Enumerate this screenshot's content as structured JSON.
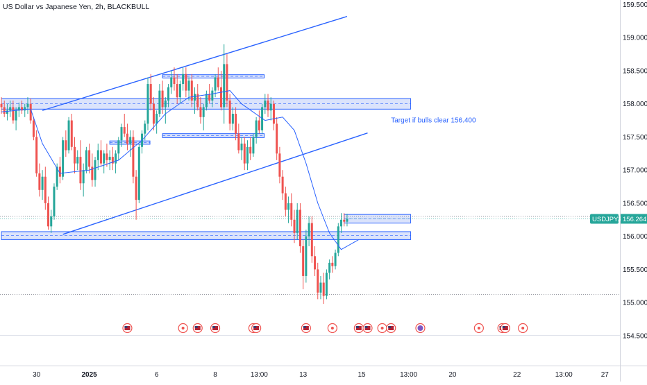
{
  "header": {
    "title": "US Dollar vs Japanese Yen, 2h, BLACKBULL"
  },
  "colors": {
    "up": "#26a69a",
    "down": "#ef5350",
    "drawing": "#2962ff",
    "zone_fill": "#dbe3fb",
    "sma": "#2962ff",
    "price_badge": "#26a69a",
    "event_ring": "#ef5350",
    "grid": "#e0e3eb"
  },
  "chart_data": {
    "type": "candlestick",
    "title": "US Dollar vs Japanese Yen, 2h, BLACKBULL",
    "symbol": "USDJPY.P",
    "current_price": 156.264,
    "ylim": [
      154.4,
      159.7
    ],
    "y_ticks": [
      "159.500",
      "159.000",
      "158.500",
      "158.000",
      "157.500",
      "157.000",
      "156.500",
      "156.000",
      "155.500",
      "155.000",
      "154.500"
    ],
    "x_ticks": [
      {
        "label": "30",
        "bar": 12,
        "bold": false
      },
      {
        "label": "2025",
        "bar": 30,
        "bold": true
      },
      {
        "label": "6",
        "bar": 53,
        "bold": false
      },
      {
        "label": "8",
        "bar": 73,
        "bold": false
      },
      {
        "label": "13:00",
        "bar": 88,
        "bold": false
      },
      {
        "label": "13",
        "bar": 103,
        "bold": false
      },
      {
        "label": "15",
        "bar": 123,
        "bold": false
      },
      {
        "label": "13:00",
        "bar": 139,
        "bold": false
      },
      {
        "label": "20",
        "bar": 154,
        "bold": false
      },
      {
        "label": "22",
        "bar": 176,
        "bold": false
      },
      {
        "label": "13:00",
        "bar": 192,
        "bold": false
      },
      {
        "label": "27",
        "bar": 206,
        "bold": false
      }
    ],
    "ohlc": [
      [
        158.0,
        158.1,
        157.85,
        157.95
      ],
      [
        157.95,
        158.05,
        157.8,
        157.85
      ],
      [
        157.85,
        158.0,
        157.75,
        157.9
      ],
      [
        157.9,
        158.05,
        157.8,
        157.95
      ],
      [
        157.95,
        158.05,
        157.7,
        157.75
      ],
      [
        157.75,
        157.95,
        157.6,
        157.9
      ],
      [
        157.9,
        158.02,
        157.8,
        157.95
      ],
      [
        157.95,
        158.05,
        157.85,
        157.9
      ],
      [
        157.9,
        158.0,
        157.8,
        157.95
      ],
      [
        157.95,
        158.1,
        157.85,
        158.0
      ],
      [
        158.0,
        158.08,
        157.7,
        157.75
      ],
      [
        157.75,
        157.8,
        157.45,
        157.5
      ],
      [
        157.5,
        157.6,
        156.9,
        156.95
      ],
      [
        156.95,
        157.1,
        156.6,
        156.7
      ],
      [
        156.7,
        157.0,
        156.55,
        156.9
      ],
      [
        156.9,
        157.05,
        156.4,
        156.5
      ],
      [
        156.5,
        156.6,
        156.1,
        156.15
      ],
      [
        156.15,
        156.4,
        156.05,
        156.3
      ],
      [
        156.3,
        156.8,
        156.25,
        156.75
      ],
      [
        156.75,
        157.1,
        156.7,
        157.05
      ],
      [
        157.05,
        157.2,
        156.8,
        156.9
      ],
      [
        156.9,
        157.5,
        156.85,
        157.45
      ],
      [
        157.45,
        157.6,
        157.2,
        157.3
      ],
      [
        157.3,
        157.8,
        157.25,
        157.75
      ],
      [
        157.75,
        157.85,
        157.3,
        157.35
      ],
      [
        157.35,
        157.5,
        156.95,
        157.1
      ],
      [
        157.1,
        157.3,
        157.0,
        157.2
      ],
      [
        157.2,
        157.45,
        156.7,
        156.8
      ],
      [
        156.8,
        157.1,
        156.6,
        157.0
      ],
      [
        157.0,
        157.35,
        156.95,
        157.3
      ],
      [
        157.3,
        157.4,
        156.95,
        157.05
      ],
      [
        157.05,
        157.25,
        156.75,
        156.85
      ],
      [
        156.85,
        157.2,
        156.75,
        157.15
      ],
      [
        157.15,
        157.4,
        157.0,
        157.3
      ],
      [
        157.3,
        157.45,
        157.05,
        157.1
      ],
      [
        157.1,
        157.3,
        156.95,
        157.25
      ],
      [
        157.25,
        157.4,
        157.05,
        157.15
      ],
      [
        157.15,
        157.3,
        157.0,
        157.2
      ],
      [
        157.2,
        157.35,
        157.0,
        157.1
      ],
      [
        157.1,
        157.3,
        156.95,
        157.25
      ],
      [
        157.25,
        157.5,
        157.15,
        157.45
      ],
      [
        157.45,
        157.7,
        157.35,
        157.65
      ],
      [
        157.65,
        157.85,
        157.5,
        157.55
      ],
      [
        157.55,
        157.7,
        157.3,
        157.4
      ],
      [
        157.4,
        157.6,
        157.2,
        157.5
      ],
      [
        157.5,
        157.6,
        156.8,
        156.9
      ],
      [
        156.9,
        157.0,
        156.25,
        156.55
      ],
      [
        156.55,
        157.4,
        156.5,
        157.35
      ],
      [
        157.35,
        157.6,
        157.25,
        157.55
      ],
      [
        157.55,
        157.75,
        157.45,
        157.7
      ],
      [
        157.7,
        158.4,
        157.6,
        158.3
      ],
      [
        158.3,
        158.45,
        157.9,
        158.0
      ],
      [
        158.0,
        158.1,
        157.6,
        157.7
      ],
      [
        157.7,
        157.9,
        157.55,
        157.85
      ],
      [
        157.85,
        158.3,
        157.8,
        158.2
      ],
      [
        158.2,
        158.35,
        157.85,
        157.95
      ],
      [
        157.95,
        158.1,
        157.7,
        158.05
      ],
      [
        158.05,
        158.3,
        157.95,
        158.25
      ],
      [
        158.25,
        158.5,
        158.15,
        158.4
      ],
      [
        158.4,
        158.55,
        158.2,
        158.3
      ],
      [
        158.3,
        158.45,
        158.0,
        158.1
      ],
      [
        158.1,
        158.35,
        158.0,
        158.3
      ],
      [
        158.3,
        158.55,
        158.2,
        158.45
      ],
      [
        158.45,
        158.55,
        158.1,
        158.2
      ],
      [
        158.2,
        158.4,
        158.05,
        158.35
      ],
      [
        158.35,
        158.45,
        157.95,
        158.05
      ],
      [
        158.05,
        158.25,
        157.85,
        158.15
      ],
      [
        158.15,
        158.3,
        157.9,
        157.95
      ],
      [
        157.95,
        158.1,
        157.7,
        157.8
      ],
      [
        157.8,
        158.0,
        157.6,
        157.95
      ],
      [
        157.95,
        158.2,
        157.9,
        158.15
      ],
      [
        158.15,
        158.3,
        158.0,
        158.05
      ],
      [
        158.05,
        158.25,
        157.95,
        158.2
      ],
      [
        158.2,
        158.45,
        158.1,
        158.4
      ],
      [
        158.4,
        158.55,
        158.2,
        158.25
      ],
      [
        158.25,
        158.5,
        157.9,
        157.95
      ],
      [
        157.95,
        158.9,
        157.7,
        158.6
      ],
      [
        158.6,
        158.75,
        157.95,
        158.05
      ],
      [
        158.05,
        158.15,
        157.6,
        157.7
      ],
      [
        157.7,
        157.95,
        157.6,
        157.85
      ],
      [
        157.85,
        157.95,
        157.45,
        157.55
      ],
      [
        157.55,
        157.7,
        157.25,
        157.3
      ],
      [
        157.3,
        157.5,
        157.15,
        157.4
      ],
      [
        157.4,
        157.5,
        157.0,
        157.1
      ],
      [
        157.1,
        157.45,
        157.0,
        157.35
      ],
      [
        157.35,
        157.5,
        157.15,
        157.25
      ],
      [
        157.25,
        157.55,
        157.2,
        157.5
      ],
      [
        157.5,
        157.8,
        157.4,
        157.75
      ],
      [
        157.75,
        157.9,
        157.55,
        157.6
      ],
      [
        157.6,
        158.0,
        157.55,
        157.95
      ],
      [
        157.95,
        158.15,
        157.85,
        158.05
      ],
      [
        158.05,
        158.15,
        157.8,
        157.9
      ],
      [
        157.9,
        158.1,
        157.75,
        158.0
      ],
      [
        158.0,
        158.05,
        157.6,
        157.7
      ],
      [
        157.7,
        157.8,
        157.15,
        157.25
      ],
      [
        157.25,
        157.35,
        156.8,
        156.9
      ],
      [
        156.9,
        157.0,
        156.55,
        156.65
      ],
      [
        156.65,
        156.75,
        156.3,
        156.4
      ],
      [
        156.4,
        156.6,
        156.2,
        156.5
      ],
      [
        156.5,
        156.65,
        156.15,
        156.25
      ],
      [
        156.25,
        156.4,
        155.9,
        156.05
      ],
      [
        156.05,
        156.5,
        155.95,
        156.4
      ],
      [
        156.4,
        156.5,
        155.75,
        155.85
      ],
      [
        155.85,
        155.95,
        155.2,
        155.4
      ],
      [
        155.4,
        156.1,
        155.3,
        156.0
      ],
      [
        156.0,
        156.3,
        155.85,
        156.2
      ],
      [
        156.2,
        156.3,
        155.6,
        155.7
      ],
      [
        155.7,
        155.85,
        155.4,
        155.5
      ],
      [
        155.5,
        155.6,
        155.05,
        155.15
      ],
      [
        155.15,
        155.4,
        155.05,
        155.3
      ],
      [
        155.3,
        155.45,
        154.98,
        155.1
      ],
      [
        155.1,
        155.5,
        155.05,
        155.45
      ],
      [
        155.45,
        155.65,
        155.35,
        155.6
      ],
      [
        155.6,
        155.7,
        155.45,
        155.55
      ],
      [
        155.55,
        155.8,
        155.5,
        155.75
      ],
      [
        155.75,
        156.2,
        155.7,
        156.15
      ],
      [
        156.15,
        156.35,
        156.05,
        156.25
      ],
      [
        156.25,
        156.35,
        156.15,
        156.22
      ],
      [
        156.22,
        156.34,
        156.15,
        156.264
      ]
    ],
    "sma": [
      [
        0,
        157.88
      ],
      [
        10,
        157.92
      ],
      [
        14,
        157.4
      ],
      [
        20,
        156.95
      ],
      [
        30,
        157.0
      ],
      [
        40,
        157.15
      ],
      [
        48,
        157.45
      ],
      [
        56,
        157.85
      ],
      [
        64,
        158.1
      ],
      [
        72,
        158.15
      ],
      [
        78,
        158.2
      ],
      [
        82,
        158.0
      ],
      [
        90,
        157.75
      ],
      [
        96,
        157.8
      ],
      [
        100,
        157.6
      ],
      [
        104,
        157.1
      ],
      [
        108,
        156.5
      ],
      [
        112,
        156.05
      ],
      [
        116,
        155.8
      ],
      [
        122,
        155.95
      ]
    ],
    "zones": [
      {
        "top": 158.08,
        "bottom": 157.92,
        "from": 0,
        "to": 139
      },
      {
        "top": 156.07,
        "bottom": 155.95,
        "from": 0,
        "to": 139
      },
      {
        "top": 158.44,
        "bottom": 158.39,
        "from": 55,
        "to": 89
      },
      {
        "top": 157.55,
        "bottom": 157.49,
        "from": 55,
        "to": 89
      },
      {
        "top": 157.44,
        "bottom": 157.39,
        "from": 37,
        "to": 50
      },
      {
        "top": 156.33,
        "bottom": 156.2,
        "from": 117,
        "to": 139
      }
    ],
    "trend_lines": [
      {
        "x1": 14,
        "y1": 157.9,
        "x2": 118,
        "y2": 159.32
      },
      {
        "x1": 21,
        "y1": 156.03,
        "x2": 125,
        "y2": 157.56
      }
    ],
    "dotted_levels": [
      156.3,
      155.12
    ],
    "annotation": {
      "text": "Target if bulls clear 156.400",
      "bar": 133,
      "price": 157.72
    },
    "event_bars": [
      43,
      62,
      67,
      73,
      86,
      87,
      104,
      113,
      122,
      125,
      130,
      133,
      143,
      163,
      171,
      172,
      178
    ],
    "event_flags": [
      "🇺🇸",
      "⚡"
    ]
  },
  "price_axis": {
    "symbol_label": "USDJPY.P",
    "price_label": "156.264"
  }
}
